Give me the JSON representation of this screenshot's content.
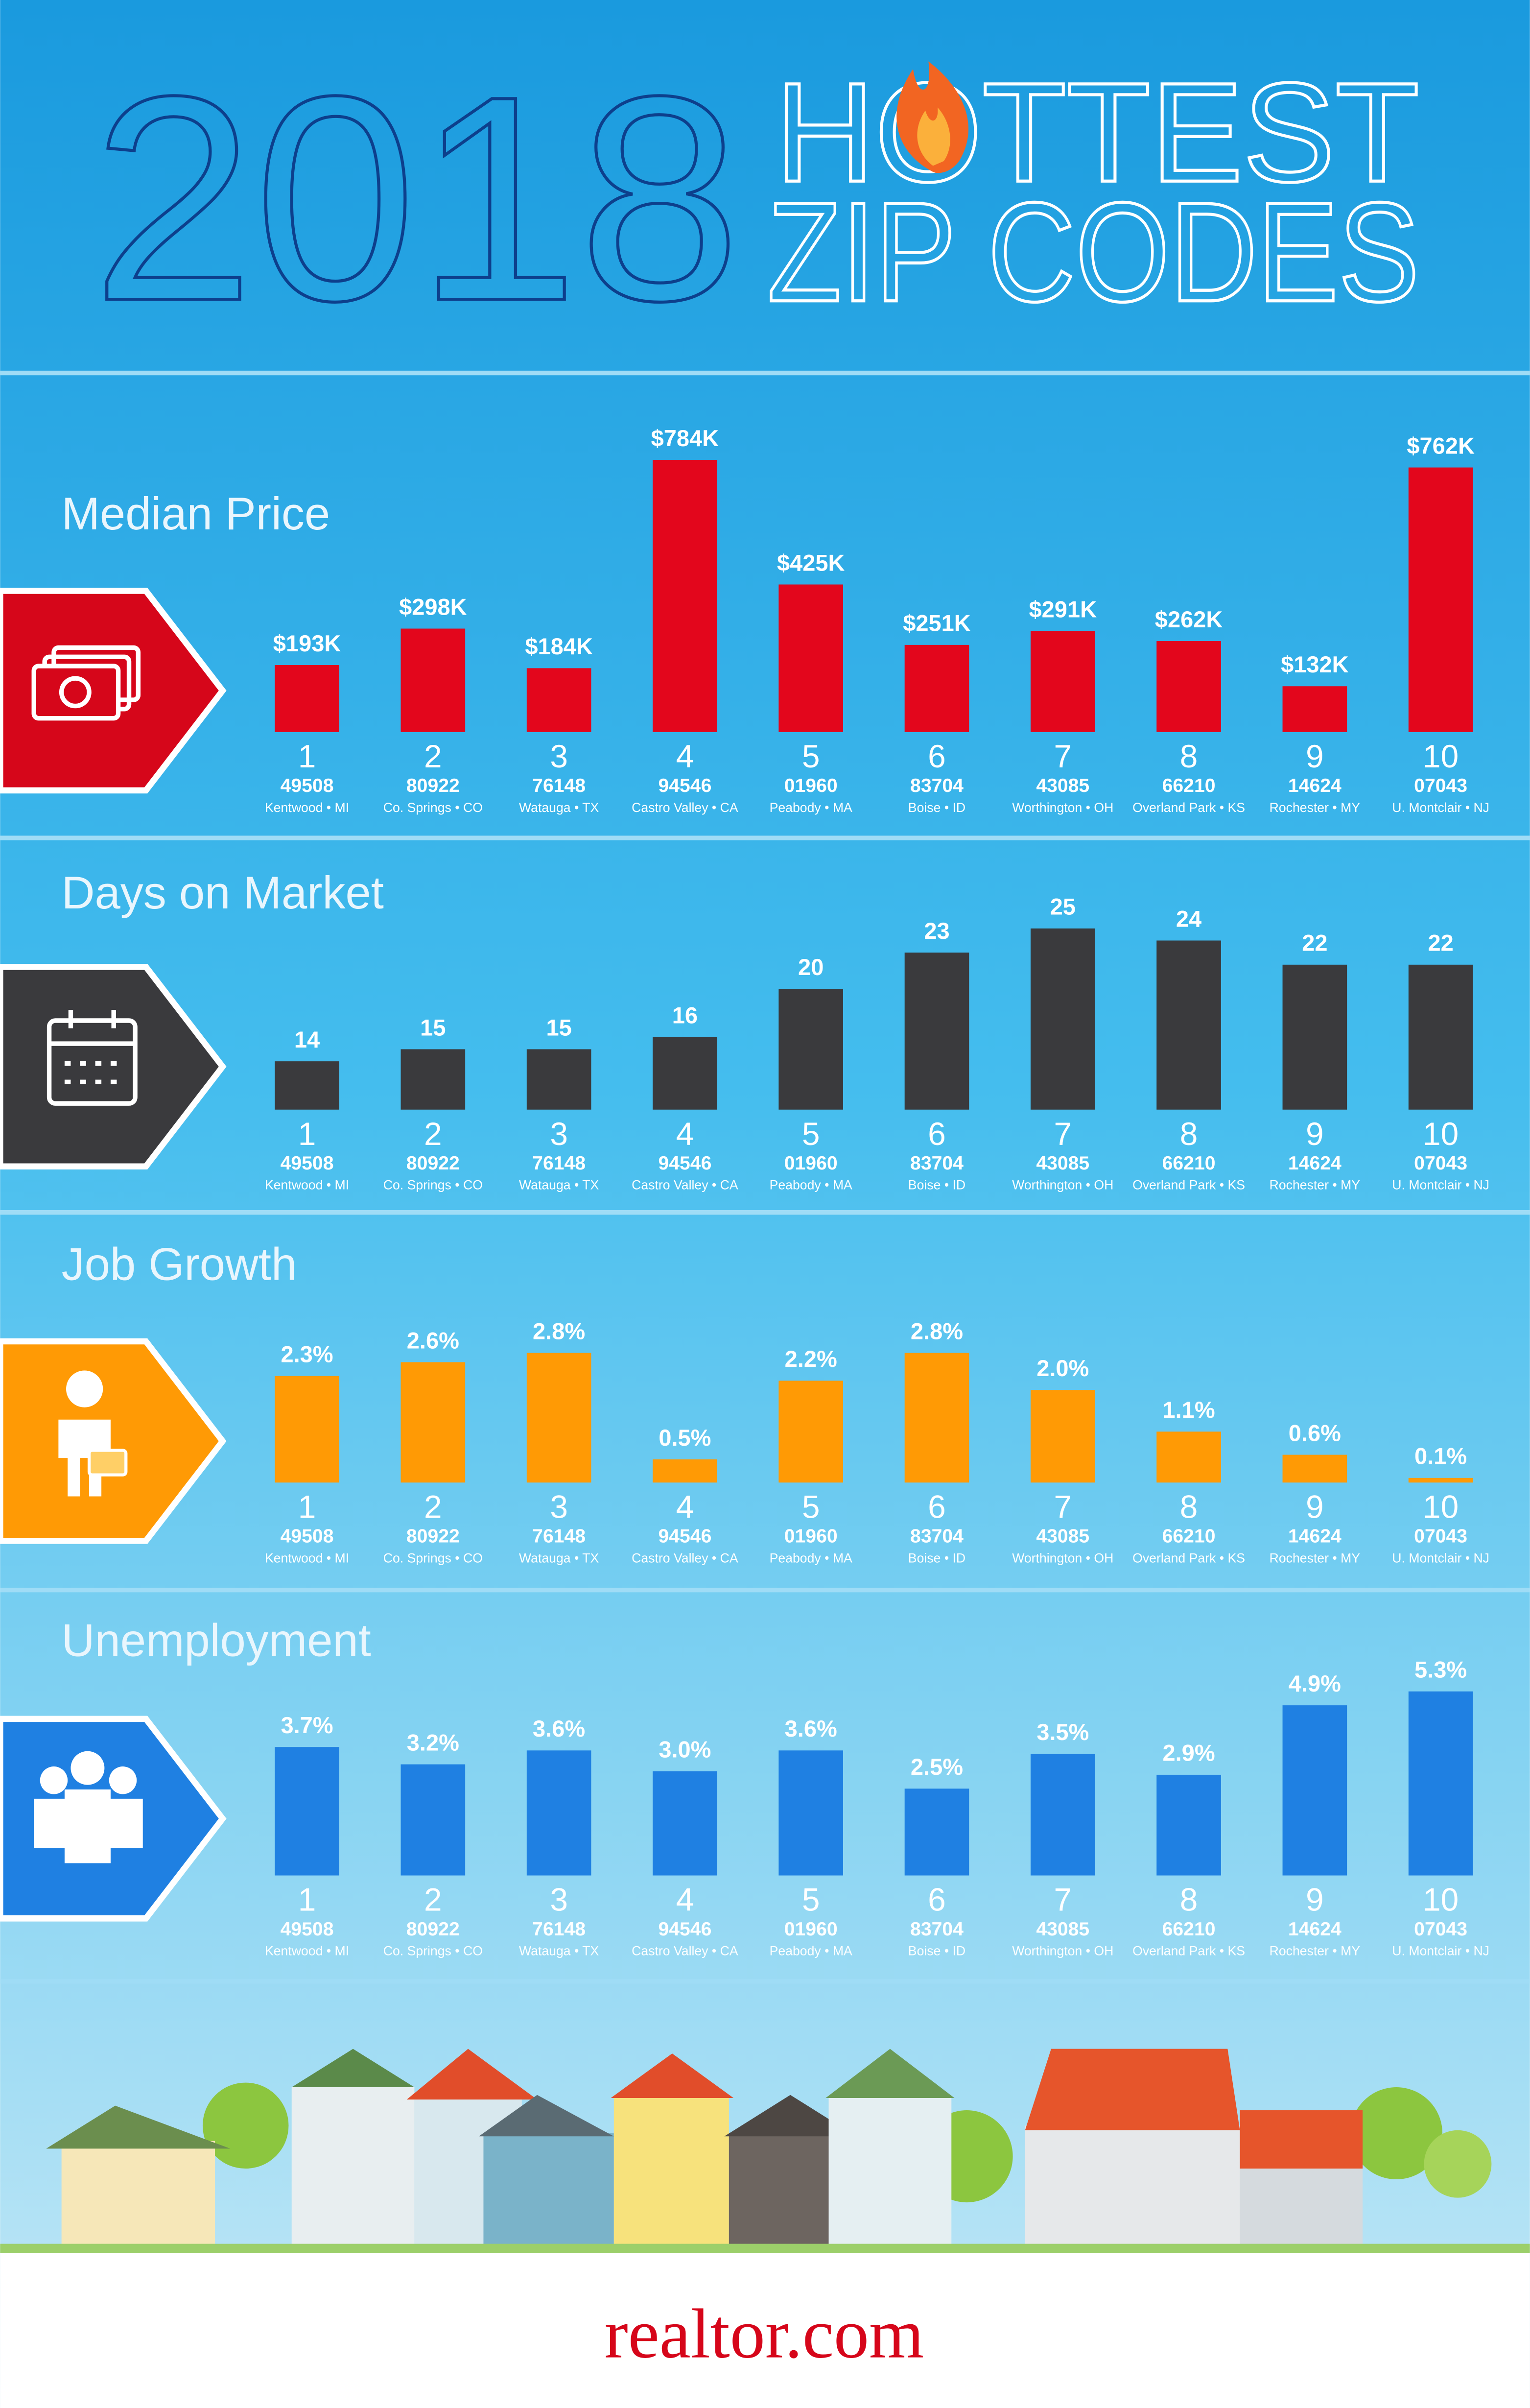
{
  "header": {
    "year": "2018",
    "line1": "HOTTEST",
    "line2": "ZIP CODES"
  },
  "chart_data": [
    {
      "type": "bar",
      "title": "Median Price",
      "color": "#e3061c",
      "categories": [
        "1",
        "2",
        "3",
        "4",
        "5",
        "6",
        "7",
        "8",
        "9",
        "10"
      ],
      "zips": [
        "49508",
        "80922",
        "76148",
        "94546",
        "01960",
        "83704",
        "43085",
        "66210",
        "14624",
        "07043"
      ],
      "locations": [
        "Kentwood • MI",
        "Co. Springs • CO",
        "Watauga • TX",
        "Castro Valley • CA",
        "Peabody • MA",
        "Boise • ID",
        "Worthington • OH",
        "Overland Park • KS",
        "Rochester • MY",
        "U. Montclair • NJ"
      ],
      "values": [
        193,
        298,
        184,
        784,
        425,
        251,
        291,
        262,
        132,
        762
      ],
      "value_labels": [
        "$193K",
        "$298K",
        "$184K",
        "$784K",
        "$425K",
        "$251K",
        "$291K",
        "$262K",
        "$132K",
        "$762K"
      ],
      "ylim": [
        0,
        800
      ]
    },
    {
      "type": "bar",
      "title": "Days on Market",
      "color": "#3a3a3d",
      "categories": [
        "1",
        "2",
        "3",
        "4",
        "5",
        "6",
        "7",
        "8",
        "9",
        "10"
      ],
      "zips": [
        "49508",
        "80922",
        "76148",
        "94546",
        "01960",
        "83704",
        "43085",
        "66210",
        "14624",
        "07043"
      ],
      "locations": [
        "Kentwood • MI",
        "Co. Springs • CO",
        "Watauga • TX",
        "Castro Valley • CA",
        "Peabody • MA",
        "Boise • ID",
        "Worthington • OH",
        "Overland Park • KS",
        "Rochester • MY",
        "U. Montclair • NJ"
      ],
      "values": [
        14,
        15,
        15,
        16,
        20,
        23,
        25,
        24,
        22,
        22
      ],
      "ylim": [
        10,
        33
      ]
    },
    {
      "type": "bar",
      "title": "Job Growth",
      "color": "#ff9a05",
      "categories": [
        "1",
        "2",
        "3",
        "4",
        "5",
        "6",
        "7",
        "8",
        "9",
        "10"
      ],
      "zips": [
        "49508",
        "80922",
        "76148",
        "94546",
        "01960",
        "83704",
        "43085",
        "66210",
        "14624",
        "07043"
      ],
      "locations": [
        "Kentwood • MI",
        "Co. Springs • CO",
        "Watauga • TX",
        "Castro Valley • CA",
        "Peabody • MA",
        "Boise • ID",
        "Worthington • OH",
        "Overland Park • KS",
        "Rochester • MY",
        "U. Montclair • NJ"
      ],
      "values": [
        2.3,
        2.6,
        2.8,
        0.5,
        2.2,
        2.8,
        2.0,
        1.1,
        0.6,
        0.1
      ],
      "value_labels": [
        "2.3%",
        "2.6%",
        "2.8%",
        "0.5%",
        "2.2%",
        "2.8%",
        "2.0%",
        "1.1%",
        "0.6%",
        "0.1%"
      ],
      "ylim": [
        0,
        6
      ]
    },
    {
      "type": "bar",
      "title": "Unemployment",
      "color": "#1f80e2",
      "categories": [
        "1",
        "2",
        "3",
        "4",
        "5",
        "6",
        "7",
        "8",
        "9",
        "10"
      ],
      "zips": [
        "49508",
        "80922",
        "76148",
        "94546",
        "01960",
        "83704",
        "43085",
        "66210",
        "14624",
        "07043"
      ],
      "locations": [
        "Kentwood • MI",
        "Co. Springs • CO",
        "Watauga • TX",
        "Castro Valley • CA",
        "Peabody • MA",
        "Boise • ID",
        "Worthington • OH",
        "Overland Park • KS",
        "Rochester • MY",
        "U. Montclair • NJ"
      ],
      "values": [
        3.7,
        3.2,
        3.6,
        3.0,
        3.6,
        2.5,
        3.5,
        2.9,
        4.9,
        5.3
      ],
      "value_labels": [
        "3.7%",
        "3.2%",
        "3.6%",
        "3.0%",
        "3.6%",
        "2.5%",
        "3.5%",
        "2.9%",
        "4.9%",
        "5.3%"
      ],
      "ylim": [
        0,
        8
      ]
    }
  ],
  "footer": {
    "brand": "realtor.com"
  }
}
